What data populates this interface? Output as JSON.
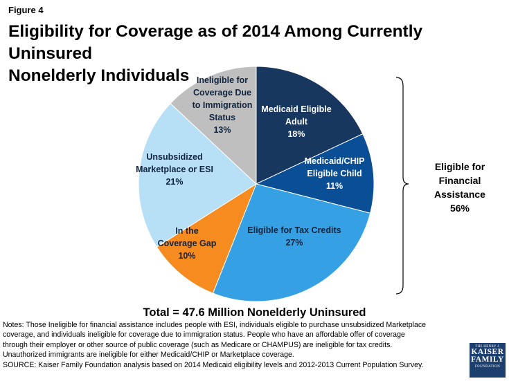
{
  "figure_label": "Figure 4",
  "title_line1": "Eligibility for Coverage as of 2014 Among Currently Uninsured",
  "title_line2": "Nonelderly Individuals",
  "chart_data": {
    "type": "pie",
    "title": "Eligibility for Coverage as of 2014 Among Currently Uninsured Nonelderly Individuals",
    "slices": [
      {
        "lines": [
          "Medicaid Eligible",
          "Adult"
        ],
        "pct_label": "18%",
        "value": 18,
        "color": "#17375e",
        "text_color": "#ffffff"
      },
      {
        "lines": [
          "Medicaid/CHIP",
          "Eligible Child"
        ],
        "pct_label": "11%",
        "value": 11,
        "color": "#0a4e96",
        "text_color": "#ffffff"
      },
      {
        "lines": [
          "Eligible for Tax Credits"
        ],
        "pct_label": "27%",
        "value": 27,
        "color": "#35a1e4",
        "text_color": "#0f243e"
      },
      {
        "lines": [
          "In the",
          "Coverage Gap"
        ],
        "pct_label": "10%",
        "value": 10,
        "color": "#f68b1f",
        "text_color": "#0f243e"
      },
      {
        "lines": [
          "Unsubsidized",
          "Marketplace or ESI"
        ],
        "pct_label": "21%",
        "value": 21,
        "color": "#b7dff6",
        "text_color": "#0f243e"
      },
      {
        "lines": [
          "Ineligible for",
          "Coverage Due",
          "to Immigration",
          "Status"
        ],
        "pct_label": "13%",
        "value": 13,
        "color": "#bfbfbf",
        "text_color": "#0f243e"
      }
    ],
    "bracket_lines": [
      "Eligible for",
      "Financial",
      "Assistance",
      "56%"
    ]
  },
  "total_label": "Total = 47.6 Million Nonelderly Uninsured",
  "notes": [
    "Notes: Those Ineligible for financial assistance includes people with ESI, individuals eligible to purchase unsubsidized Marketplace",
    "coverage, and individuals ineligible for coverage due to immigration status. People who have an affordable offer of coverage",
    "through their employer or other source of public coverage (such as Medicare or CHAMPUS) are ineligible for tax credits.",
    "Unauthorized immigrants are ineligible for either Medicaid/CHIP or Marketplace coverage.",
    "SOURCE: Kaiser Family Foundation analysis based on 2014 Medicaid eligibility levels and 2012-2013 Current Population Survey."
  ],
  "logo": {
    "line1": "THE HENRY J.",
    "line2": "KAISER",
    "line3": "FAMILY",
    "line4": "FOUNDATION"
  }
}
